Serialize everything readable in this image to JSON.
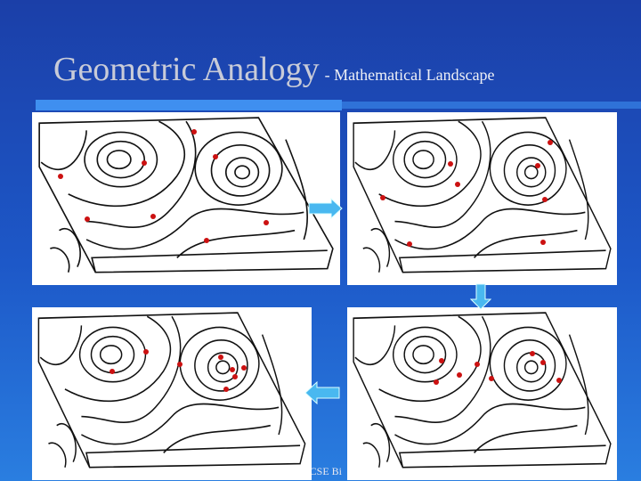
{
  "header": {
    "title": "Geometric Analogy",
    "subtitle": "- Mathematical Landscape"
  },
  "footer": {
    "text": "U CSE Bi"
  }
}
